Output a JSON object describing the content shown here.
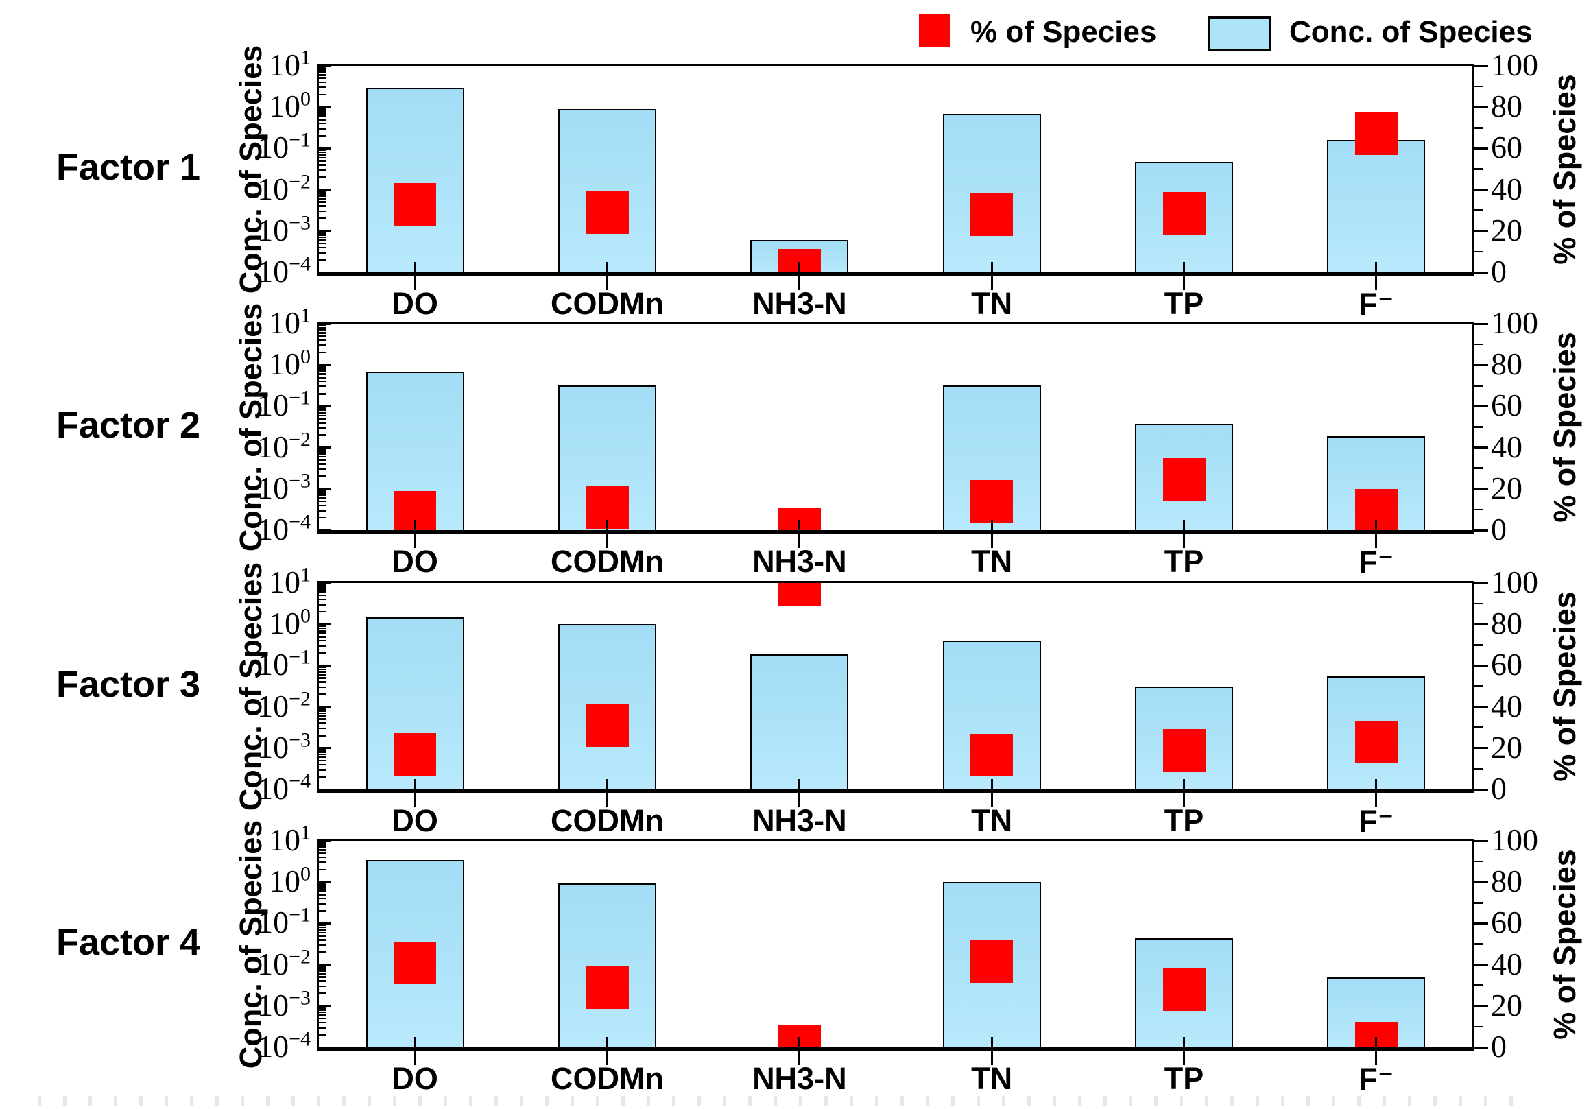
{
  "legend": [
    {
      "label": "% of Species",
      "swatch": "red-square-marker",
      "color": "#ff0000"
    },
    {
      "label": "Conc. of Species",
      "swatch": "blue-bar",
      "color": "#aee4f9"
    }
  ],
  "left_axis": {
    "label": "Conc. of Species",
    "scale": "log",
    "tick_exponents": [
      1,
      0,
      -1,
      -2,
      -3,
      -4
    ],
    "range": [
      0.0001,
      10
    ]
  },
  "right_axis": {
    "label": "% of Species",
    "ticks": [
      0,
      20,
      40,
      60,
      80,
      100
    ],
    "range": [
      0,
      100
    ]
  },
  "chart_data": {
    "type": "bar",
    "categories": [
      "DO",
      "CODMn",
      "NH3-N",
      "TN",
      "TP",
      "F⁻"
    ],
    "left_axis_label": "Conc. of Species",
    "right_axis_label": "% of Species",
    "left_ylim_log": [
      0.0001,
      10
    ],
    "right_ylim": [
      0,
      100
    ],
    "legend_entries": [
      "% of Species",
      "Conc. of Species"
    ],
    "panels": [
      {
        "factor": "Factor 1",
        "conc_of_species": [
          2.9,
          0.9,
          0.0006,
          0.68,
          0.047,
          0.16
        ],
        "pct_of_species": [
          33,
          29,
          1,
          28,
          28.5,
          67
        ]
      },
      {
        "factor": "Factor 2",
        "conc_of_species": [
          0.68,
          0.32,
          null,
          0.32,
          0.038,
          0.019
        ],
        "pct_of_species": [
          8.5,
          11,
          0.5,
          14,
          24.5,
          9.5
        ]
      },
      {
        "factor": "Factor 3",
        "conc_of_species": [
          1.5,
          1.0,
          0.19,
          0.4,
          0.031,
          0.056
        ],
        "pct_of_species": [
          17,
          31,
          99.5,
          16.5,
          19,
          23
        ]
      },
      {
        "factor": "Factor 4",
        "conc_of_species": [
          3.4,
          0.95,
          null,
          1.0,
          0.044,
          0.005
        ],
        "pct_of_species": [
          41,
          29,
          0.5,
          41.5,
          28,
          2
        ]
      }
    ]
  }
}
